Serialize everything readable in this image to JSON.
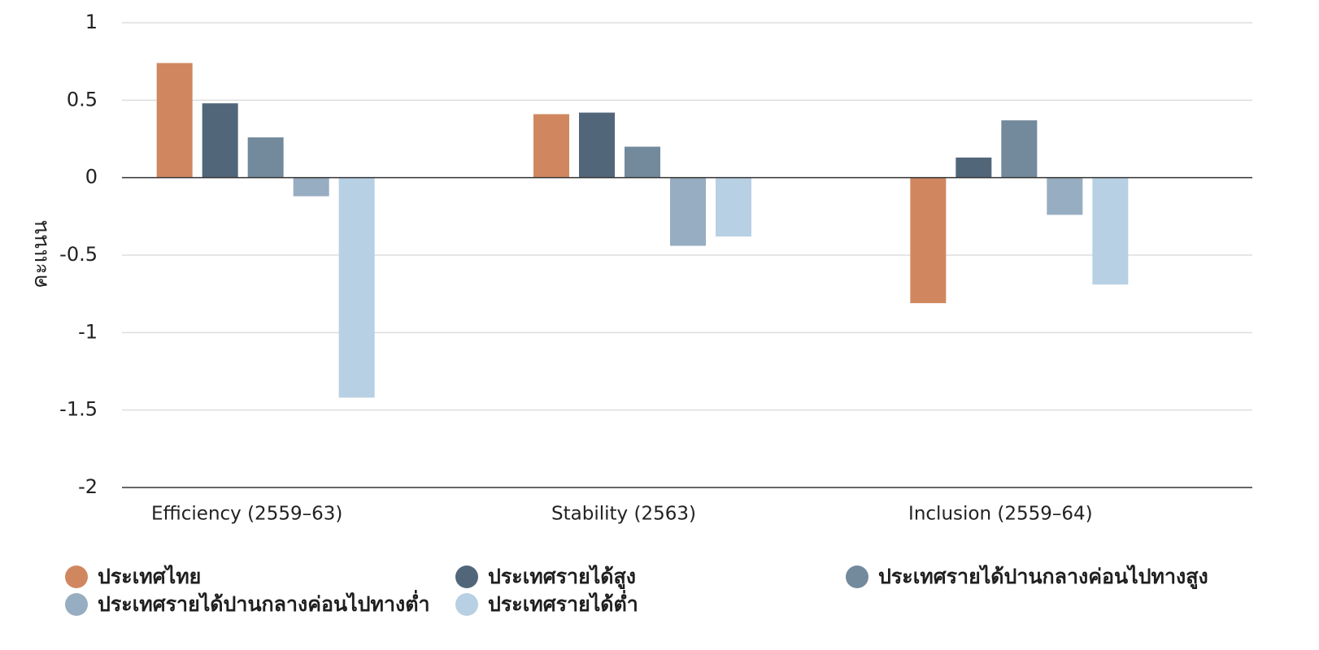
{
  "chart_data": {
    "type": "bar",
    "ylabel": "คะแนน",
    "ylim": [
      -2,
      1
    ],
    "yticks": [
      1,
      0.5,
      0,
      -0.5,
      -1,
      -1.5,
      -2
    ],
    "ytick_labels": [
      "1",
      "0.5",
      "0",
      "-0.5",
      "-1",
      "-1.5",
      "-2"
    ],
    "categories": [
      "Efficiency (2559–63)",
      "Stability (2563)",
      "Inclusion (2559–64)"
    ],
    "grid": true,
    "legend_position": "bottom",
    "series": [
      {
        "name": "ประเทศไทย",
        "color": "#d08760",
        "values": [
          0.74,
          0.41,
          -0.81
        ]
      },
      {
        "name": "ประเทศรายได้สูง",
        "color": "#52667a",
        "values": [
          0.48,
          0.42,
          0.13
        ]
      },
      {
        "name": "ประเทศรายได้ปานกลางค่อนไปทางสูง",
        "color": "#73899c",
        "values": [
          0.26,
          0.2,
          0.37
        ]
      },
      {
        "name": "ประเทศรายได้ปานกลางค่อนไปทางต่ำ",
        "color": "#97adc2",
        "values": [
          -0.12,
          -0.44,
          -0.24
        ]
      },
      {
        "name": "ประเทศรายได้ต่ำ",
        "color": "#b7d0e4",
        "values": [
          -1.42,
          -0.38,
          -0.69
        ]
      }
    ]
  }
}
